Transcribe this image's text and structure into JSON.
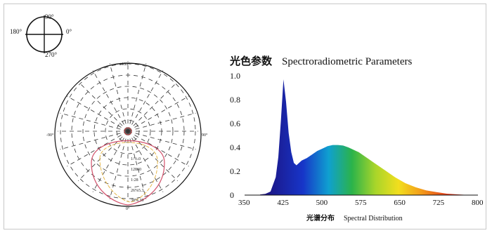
{
  "compass": {
    "top": "90°",
    "left": "180°",
    "right": "0°",
    "bottom": "270°"
  },
  "polar": {
    "top_label": "±180°",
    "left_label": "-90°",
    "right_label": "90°",
    "bottom_label": "0°",
    "ring_labels": [
      "1/%.0",
      "12860",
      "1:28",
      "26%5.3",
      "38%.39"
    ]
  },
  "chart_data": {
    "type": "area",
    "title_cjk": "光色参数",
    "title": "Spectroradiometric Parameters",
    "xlabel_cjk": "光谱分布",
    "xlabel": "Spectral Distribution",
    "xlim": [
      350,
      800
    ],
    "ylim": [
      0,
      1.0
    ],
    "x_ticks": [
      "350",
      "425",
      "500",
      "575",
      "650",
      "725",
      "800"
    ],
    "y_ticks": [
      "0",
      "0.2",
      "0.4",
      "0.6",
      "0.8",
      "1.0"
    ],
    "x": [
      380,
      390,
      400,
      410,
      415,
      420,
      425,
      430,
      435,
      440,
      445,
      450,
      455,
      460,
      470,
      480,
      490,
      500,
      510,
      520,
      530,
      540,
      550,
      560,
      570,
      580,
      590,
      600,
      620,
      640,
      660,
      680,
      700,
      720,
      740,
      760,
      780
    ],
    "values": [
      0.005,
      0.01,
      0.03,
      0.15,
      0.32,
      0.62,
      0.97,
      0.78,
      0.52,
      0.36,
      0.27,
      0.25,
      0.27,
      0.29,
      0.31,
      0.34,
      0.37,
      0.39,
      0.41,
      0.42,
      0.42,
      0.415,
      0.4,
      0.38,
      0.36,
      0.33,
      0.3,
      0.27,
      0.21,
      0.15,
      0.1,
      0.065,
      0.04,
      0.025,
      0.012,
      0.006,
      0.002
    ]
  }
}
